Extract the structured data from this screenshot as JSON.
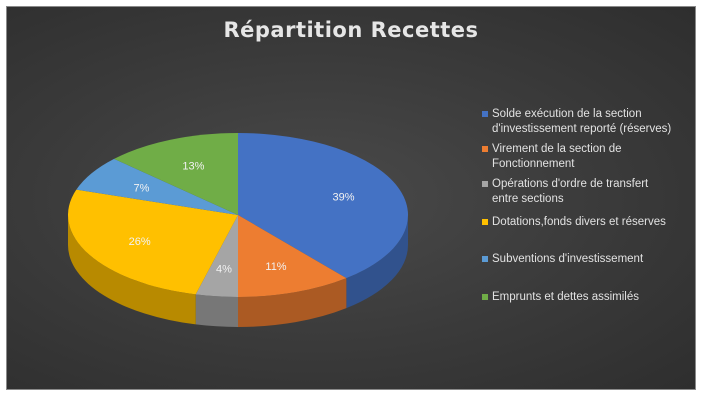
{
  "chart_data": {
    "type": "pie",
    "title": "Répartition Recettes",
    "slices": [
      {
        "label": "Solde exécution de la section d'investissement reporté (réserves)",
        "value": 39,
        "display": "39%",
        "color": "#4472C4"
      },
      {
        "label": "Virement de la section de Fonctionnement",
        "value": 11,
        "display": "11%",
        "color": "#ED7D31"
      },
      {
        "label": "Opérations d'ordre de transfert entre sections",
        "value": 4,
        "display": "4%",
        "color": "#A5A5A5"
      },
      {
        "label": "Dotations,fonds divers et réserves",
        "value": 26,
        "display": "26%",
        "color": "#FFC000"
      },
      {
        "label": "Subventions d'investissement",
        "value": 7,
        "display": "7%",
        "color": "#5B9BD5"
      },
      {
        "label": "Emprunts et dettes assimilés",
        "value": 13,
        "display": "13%",
        "color": "#70AD47"
      }
    ],
    "legend": {
      "position": "right",
      "entries": [
        [
          "Solde exécution de la section",
          "d'investissement reporté (réserves)"
        ],
        [
          "Virement de la section de",
          "Fonctionnement"
        ],
        [
          "Opérations d'ordre de transfert",
          "entre sections"
        ],
        [
          "Dotations,fonds divers et réserves"
        ],
        [
          "Subventions d'investissement"
        ],
        [
          "Emprunts et dettes assimilés"
        ]
      ]
    }
  }
}
